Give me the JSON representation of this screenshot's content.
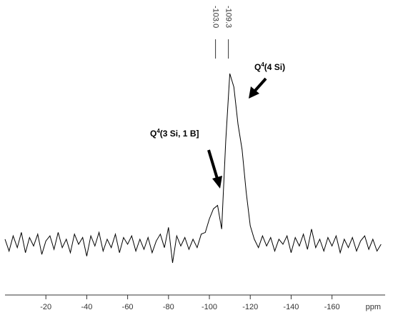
{
  "chart_data": {
    "type": "line",
    "x": [
      0,
      -2,
      -4,
      -6,
      -8,
      -10,
      -12,
      -14,
      -16,
      -18,
      -20,
      -22,
      -24,
      -26,
      -28,
      -30,
      -32,
      -34,
      -36,
      -38,
      -40,
      -42,
      -44,
      -46,
      -48,
      -50,
      -52,
      -54,
      -56,
      -58,
      -60,
      -62,
      -64,
      -66,
      -68,
      -70,
      -72,
      -74,
      -76,
      -78,
      -80,
      -82,
      -84,
      -86,
      -88,
      -90,
      -92,
      -94,
      -96,
      -98,
      -100,
      -102,
      -104,
      -106,
      -108,
      -110,
      -112,
      -114,
      -116,
      -118,
      -120,
      -122,
      -124,
      -126,
      -128,
      -130,
      -132,
      -134,
      -136,
      -138,
      -140,
      -142,
      -144,
      -146,
      -148,
      -150,
      -152,
      -154,
      -156,
      -158,
      -160,
      -162,
      -164,
      -166,
      -168,
      -170,
      -172,
      -174,
      -176,
      -178,
      -180,
      -182,
      -184
    ],
    "values": [
      2,
      -5,
      4,
      -3,
      6,
      -6,
      3,
      -2,
      5,
      -7,
      1,
      4,
      -4,
      6,
      -3,
      2,
      -6,
      5,
      -1,
      3,
      -8,
      4,
      -2,
      6,
      -5,
      2,
      -3,
      5,
      -6,
      3,
      -1,
      4,
      -5,
      2,
      -4,
      3,
      -6,
      1,
      5,
      -3,
      9,
      -12,
      4,
      -2,
      3,
      -4,
      2,
      -3,
      5,
      6,
      14,
      20,
      22,
      8,
      60,
      100,
      92,
      70,
      55,
      30,
      10,
      2,
      -3,
      4,
      -2,
      3,
      -5,
      2,
      -1,
      4,
      -6,
      3,
      -2,
      5,
      -4,
      8,
      -3,
      2,
      -5,
      3,
      -2,
      4,
      -6,
      2,
      -3,
      3,
      -5,
      1,
      4,
      -4,
      2,
      -5,
      -1
    ],
    "color": "#000000",
    "xlim": [
      0,
      -186
    ],
    "ylim": [
      -31,
      100
    ],
    "xticks": [
      -20,
      -40,
      -60,
      -80,
      -100,
      -120,
      -140,
      -160
    ],
    "xlabel": "ppm",
    "peaks": [
      {
        "value": -103.0,
        "label": "-103.0"
      },
      {
        "value": -109.3,
        "label": "-109.3"
      }
    ],
    "annotations": [
      {
        "base": "Q",
        "sup": "4",
        "text": "(4 Si)"
      },
      {
        "base": "Q",
        "sup": "4",
        "text": "(3 Si, 1 B]"
      }
    ]
  }
}
